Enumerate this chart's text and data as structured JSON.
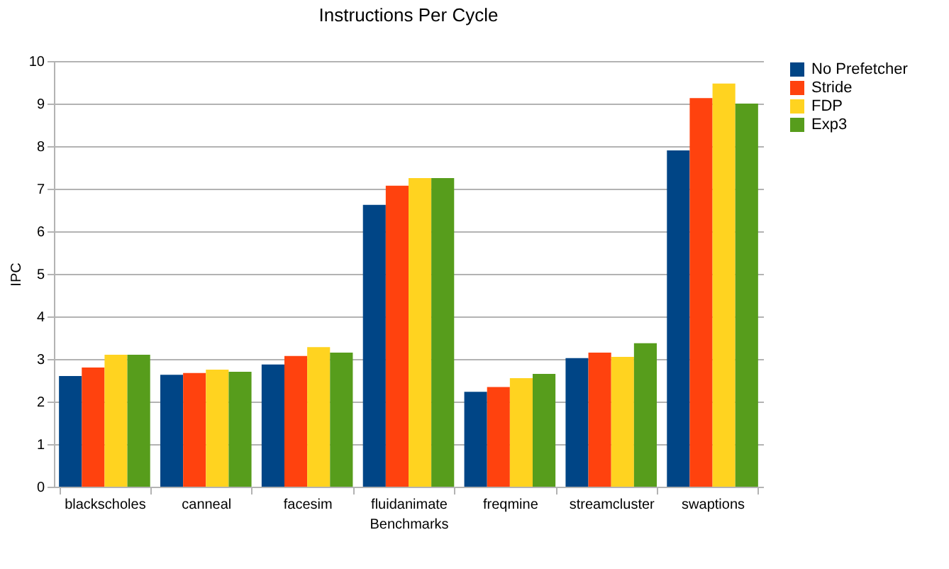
{
  "chart_data": {
    "type": "bar",
    "title": "Instructions Per Cycle",
    "xlabel": "Benchmarks",
    "ylabel": "IPC",
    "categories": [
      "blackscholes",
      "canneal",
      "facesim",
      "fluidanimate",
      "freqmine",
      "streamcluster",
      "swaptions"
    ],
    "series": [
      {
        "name": "No Prefetcher",
        "color": "#004586",
        "values": [
          2.6,
          2.63,
          2.87,
          6.62,
          2.23,
          3.02,
          7.9
        ]
      },
      {
        "name": "Stride",
        "color": "#ff420e",
        "values": [
          2.8,
          2.67,
          3.07,
          7.07,
          2.34,
          3.15,
          9.13
        ]
      },
      {
        "name": "FDP",
        "color": "#ffd320",
        "values": [
          3.1,
          2.75,
          3.28,
          7.25,
          2.55,
          3.05,
          9.47
        ]
      },
      {
        "name": "Exp3",
        "color": "#579d1c",
        "values": [
          3.1,
          2.7,
          3.15,
          7.25,
          2.65,
          3.37,
          9.0
        ]
      }
    ],
    "ylim": [
      0,
      10
    ],
    "yticks": [
      0,
      1,
      2,
      3,
      4,
      5,
      6,
      7,
      8,
      9,
      10
    ],
    "grid": "y",
    "legend": "right"
  }
}
